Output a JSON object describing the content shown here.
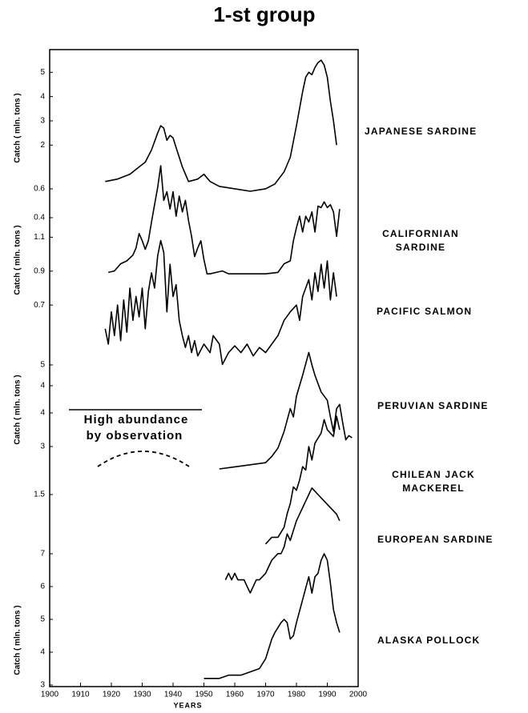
{
  "title": "1-st group",
  "annotation": [
    "High abundance",
    "by observation"
  ],
  "chart_data": [
    {
      "type": "line",
      "ylabel": "Catch ( mln. tons )",
      "ylim": [
        0,
        6
      ],
      "yticks": [
        2,
        3,
        4,
        5
      ],
      "x": [
        1918,
        1922,
        1926,
        1929,
        1931,
        1933,
        1935,
        1936,
        1937,
        1938,
        1939,
        1940,
        1941,
        1942,
        1943,
        1945,
        1948,
        1950,
        1952,
        1955,
        1960,
        1965,
        1970,
        1973,
        1976,
        1978,
        1980,
        1982,
        1983,
        1984,
        1985,
        1986,
        1987,
        1988,
        1989,
        1990,
        1991,
        1992,
        1993
      ],
      "series": [
        {
          "name": "JAPANESE SARDINE",
          "color": "#000000",
          "values": [
            0.5,
            0.6,
            0.8,
            1.1,
            1.3,
            1.8,
            2.5,
            2.8,
            2.7,
            2.2,
            2.4,
            2.3,
            1.9,
            1.5,
            1.1,
            0.5,
            0.6,
            0.8,
            0.5,
            0.3,
            0.2,
            0.1,
            0.2,
            0.4,
            0.9,
            1.5,
            2.8,
            4.2,
            4.8,
            5.0,
            4.9,
            5.2,
            5.4,
            5.5,
            5.3,
            4.8,
            3.8,
            3.0,
            2.0
          ]
        }
      ]
    },
    {
      "type": "line",
      "ylabel": "Catch ( mln. tons )",
      "ylim": [
        0,
        0.8
      ],
      "yticks": [
        0.4,
        0.6
      ],
      "x": [
        1919,
        1921,
        1923,
        1925,
        1927,
        1928,
        1929,
        1930,
        1931,
        1932,
        1933,
        1934,
        1935,
        1936,
        1937,
        1938,
        1939,
        1940,
        1941,
        1942,
        1943,
        1944,
        1945,
        1946,
        1947,
        1948,
        1949,
        1950,
        1951,
        1952,
        1954,
        1956,
        1958,
        1960,
        1965,
        1970,
        1974,
        1976,
        1978,
        1979,
        1980,
        1981,
        1982,
        1983,
        1984,
        1985,
        1986,
        1987,
        1988,
        1989,
        1990,
        1991,
        1992,
        1993,
        1994
      ],
      "series": [
        {
          "name": "CALIFORNIAN SARDINE",
          "color": "#000000",
          "values": [
            0.02,
            0.03,
            0.08,
            0.1,
            0.14,
            0.19,
            0.29,
            0.24,
            0.18,
            0.24,
            0.37,
            0.49,
            0.61,
            0.76,
            0.52,
            0.58,
            0.46,
            0.58,
            0.41,
            0.55,
            0.44,
            0.52,
            0.38,
            0.27,
            0.13,
            0.19,
            0.24,
            0.11,
            0.01,
            0.01,
            0.02,
            0.03,
            0.01,
            0.01,
            0.01,
            0.01,
            0.02,
            0.08,
            0.1,
            0.24,
            0.33,
            0.41,
            0.3,
            0.41,
            0.37,
            0.44,
            0.3,
            0.48,
            0.47,
            0.51,
            0.47,
            0.49,
            0.44,
            0.27,
            0.46
          ]
        }
      ]
    },
    {
      "type": "line",
      "ylim": [
        0.3,
        1.2
      ],
      "yticks": [
        0.7,
        0.9,
        1.1
      ],
      "x": [
        1918,
        1919,
        1920,
        1921,
        1922,
        1923,
        1924,
        1925,
        1926,
        1927,
        1928,
        1929,
        1930,
        1931,
        1932,
        1933,
        1934,
        1935,
        1936,
        1937,
        1938,
        1939,
        1940,
        1941,
        1942,
        1943,
        1944,
        1945,
        1946,
        1947,
        1948,
        1950,
        1952,
        1953,
        1955,
        1956,
        1958,
        1960,
        1962,
        1964,
        1966,
        1968,
        1970,
        1972,
        1974,
        1976,
        1978,
        1980,
        1981,
        1982,
        1984,
        1985,
        1986,
        1987,
        1988,
        1989,
        1990,
        1991,
        1992,
        1993
      ],
      "series": [
        {
          "name": "PACIFIC SALMON",
          "color": "#000000",
          "values": [
            0.56,
            0.47,
            0.66,
            0.52,
            0.7,
            0.49,
            0.73,
            0.54,
            0.8,
            0.61,
            0.75,
            0.63,
            0.8,
            0.56,
            0.78,
            0.89,
            0.8,
            0.99,
            1.08,
            1.01,
            0.66,
            0.94,
            0.75,
            0.82,
            0.61,
            0.52,
            0.45,
            0.52,
            0.42,
            0.49,
            0.4,
            0.47,
            0.42,
            0.52,
            0.47,
            0.35,
            0.42,
            0.46,
            0.42,
            0.47,
            0.4,
            0.45,
            0.42,
            0.47,
            0.52,
            0.61,
            0.66,
            0.7,
            0.61,
            0.75,
            0.85,
            0.73,
            0.89,
            0.78,
            0.94,
            0.8,
            0.96,
            0.73,
            0.89,
            0.75
          ]
        }
      ]
    },
    {
      "type": "line",
      "ylabel": "Catch ( mln. tons )",
      "ylim": [
        0,
        6
      ],
      "yticks": [
        4,
        5
      ],
      "x": [
        1955,
        1960,
        1965,
        1970,
        1972,
        1974,
        1976,
        1978,
        1979,
        1980,
        1982,
        1984,
        1985,
        1986,
        1988,
        1990,
        1991,
        1992,
        1993,
        1994,
        1995,
        1996,
        1997,
        1998
      ],
      "series": [
        {
          "name": "PERUVIAN SARDINE",
          "color": "#000000",
          "values": [
            0.0,
            0.1,
            0.2,
            0.3,
            0.6,
            1.0,
            1.8,
            2.9,
            2.5,
            3.5,
            4.5,
            5.6,
            5.0,
            4.5,
            3.7,
            3.3,
            2.5,
            1.8,
            2.9,
            3.1,
            2.2,
            1.4,
            1.6,
            1.5
          ]
        }
      ]
    },
    {
      "type": "line",
      "ylim": [
        0,
        5
      ],
      "yticks": [
        3,
        4
      ],
      "x": [
        1970,
        1972,
        1974,
        1976,
        1977,
        1978,
        1979,
        1980,
        1981,
        1982,
        1983,
        1984,
        1985,
        1986,
        1988,
        1989,
        1990,
        1992,
        1993,
        1994
      ],
      "series": [
        {
          "name": "CHILEAN JACK MACKEREL",
          "color": "#000000",
          "values": [
            0.1,
            0.3,
            0.3,
            0.6,
            1.0,
            1.3,
            1.8,
            1.7,
            2.0,
            2.4,
            2.3,
            3.0,
            2.6,
            3.1,
            3.4,
            3.8,
            3.5,
            3.3,
            3.9,
            3.5
          ]
        }
      ]
    },
    {
      "type": "line",
      "ylim": [
        0,
        1.7
      ],
      "yticks": [
        1.5
      ],
      "x": [
        1957,
        1958,
        1959,
        1960,
        1961,
        1963,
        1964,
        1965,
        1966,
        1967,
        1968,
        1970,
        1972,
        1974,
        1975,
        1976,
        1977,
        1978,
        1980,
        1982,
        1984,
        1985,
        1987,
        1989,
        1991,
        1993,
        1994
      ],
      "series": [
        {
          "name": "EUROPEAN SARDINE",
          "color": "#000000",
          "values": [
            0.2,
            0.3,
            0.2,
            0.3,
            0.2,
            0.2,
            0.1,
            0.0,
            0.1,
            0.2,
            0.2,
            0.3,
            0.5,
            0.6,
            0.6,
            0.7,
            0.9,
            0.8,
            1.1,
            1.3,
            1.5,
            1.6,
            1.5,
            1.4,
            1.3,
            1.2,
            1.1
          ]
        }
      ]
    },
    {
      "type": "line",
      "ylabel": "Catch ( mln. tons )",
      "ylim": [
        3,
        7.5
      ],
      "yticks": [
        3,
        4,
        5,
        6,
        7
      ],
      "xlabel": "YEARS",
      "xlim": [
        1900,
        2000
      ],
      "xticks": [
        1900,
        1910,
        1920,
        1930,
        1940,
        1950,
        1960,
        1970,
        1980,
        1990,
        2000
      ],
      "x": [
        1950,
        1955,
        1958,
        1962,
        1965,
        1968,
        1970,
        1972,
        1973,
        1975,
        1976,
        1977,
        1978,
        1979,
        1980,
        1982,
        1984,
        1985,
        1986,
        1987,
        1988,
        1989,
        1990,
        1991,
        1992,
        1993,
        1994
      ],
      "series": [
        {
          "name": "ALASKA POLLOCK",
          "color": "#000000",
          "values": [
            3.2,
            3.2,
            3.3,
            3.3,
            3.4,
            3.5,
            3.8,
            4.4,
            4.6,
            4.9,
            5.0,
            4.9,
            4.4,
            4.5,
            4.9,
            5.6,
            6.3,
            5.8,
            6.3,
            6.4,
            6.8,
            7.0,
            6.8,
            6.1,
            5.3,
            4.9,
            4.6
          ]
        }
      ]
    }
  ]
}
